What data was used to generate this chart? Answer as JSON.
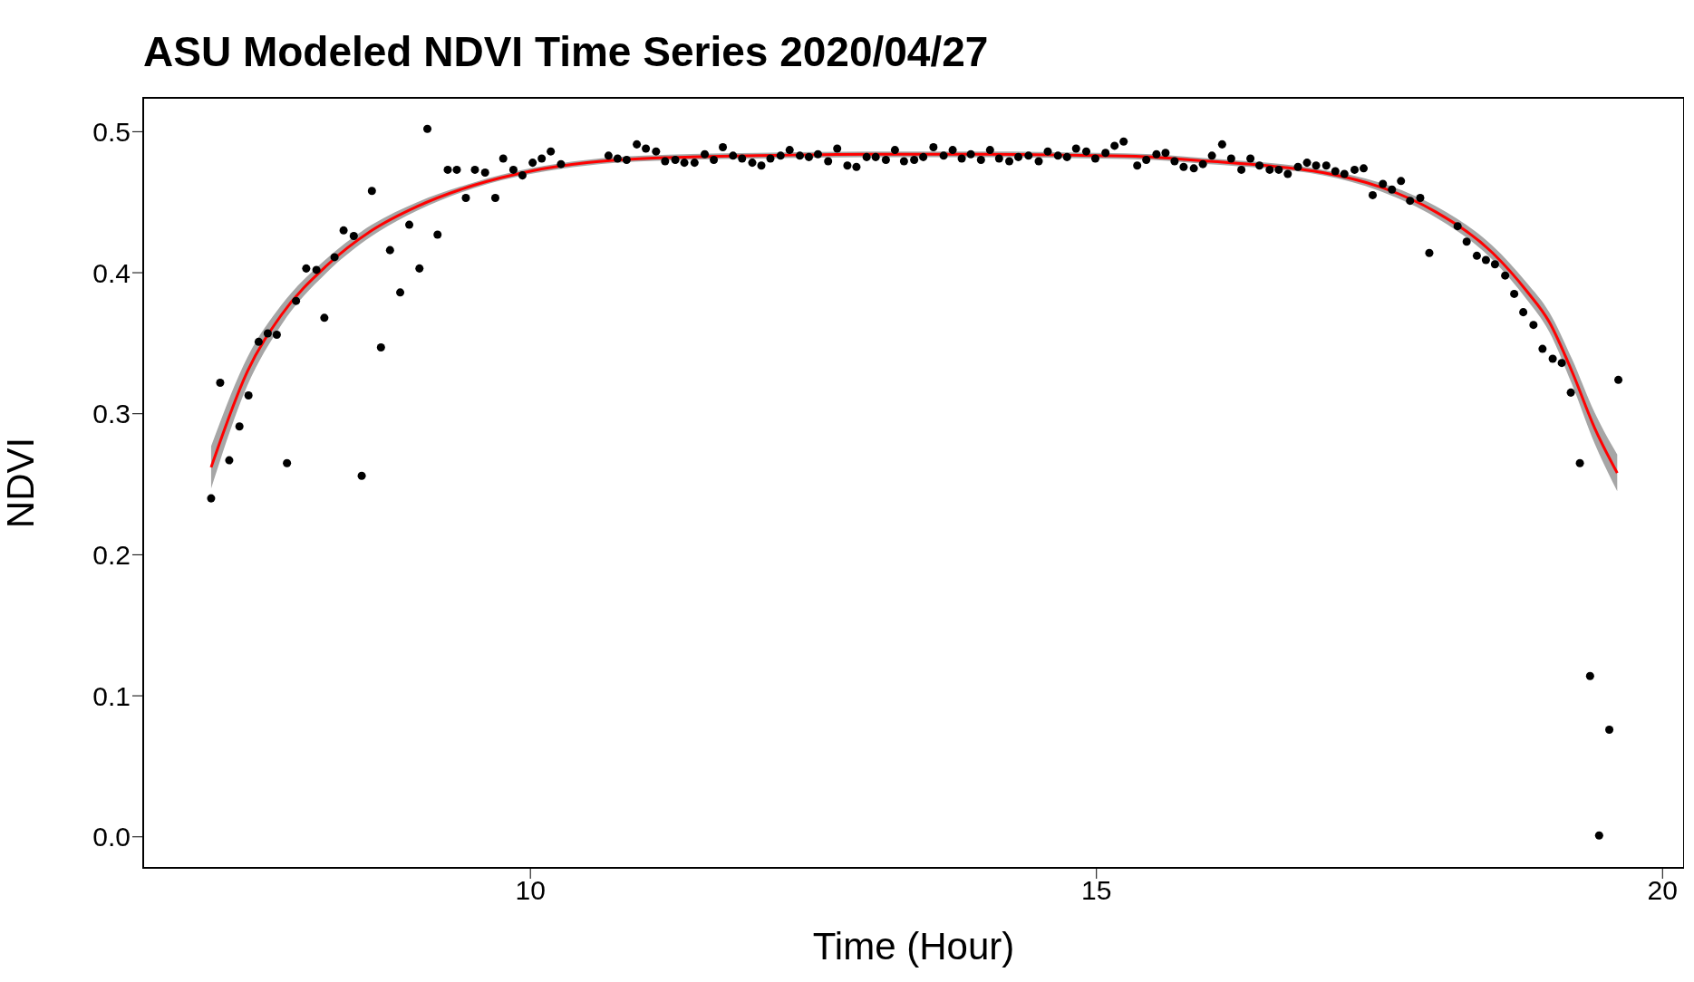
{
  "chart_data": {
    "type": "scatter",
    "title": "ASU Modeled NDVI Time Series 2020/04/27",
    "xlabel": "Time (Hour)",
    "ylabel": "NDVI",
    "xlim": [
      6.58,
      20.19
    ],
    "ylim": [
      -0.022,
      0.524
    ],
    "xticks": [
      10,
      15,
      20
    ],
    "yticks": [
      {
        "value": 0,
        "label": "0.0"
      },
      0.1,
      0.2,
      0.3,
      0.4,
      0.5
    ],
    "series": [
      {
        "marker": "circle",
        "color": "#000000",
        "x": [
          7.18,
          7.26,
          7.34,
          7.43,
          7.51,
          7.6,
          7.68,
          7.76,
          7.85,
          7.93,
          8.02,
          8.11,
          8.18,
          8.27,
          8.35,
          8.44,
          8.51,
          8.6,
          8.68,
          8.76,
          8.85,
          8.93,
          9.02,
          9.09,
          9.18,
          9.27,
          9.35,
          9.43,
          9.51,
          9.6,
          9.69,
          9.76,
          9.85,
          9.93,
          10.02,
          10.1,
          10.18,
          10.27,
          10.69,
          10.77,
          10.85,
          10.94,
          11.02,
          11.11,
          11.19,
          11.28,
          11.36,
          11.45,
          11.54,
          11.62,
          11.7,
          11.79,
          11.87,
          11.96,
          12.04,
          12.12,
          12.21,
          12.29,
          12.38,
          12.46,
          12.54,
          12.63,
          12.71,
          12.8,
          12.88,
          12.97,
          13.05,
          13.14,
          13.22,
          13.3,
          13.39,
          13.47,
          13.56,
          13.65,
          13.73,
          13.81,
          13.89,
          13.98,
          14.06,
          14.14,
          14.23,
          14.31,
          14.4,
          14.49,
          14.57,
          14.66,
          14.74,
          14.82,
          14.91,
          14.99,
          15.08,
          15.16,
          15.24,
          15.36,
          15.44,
          15.53,
          15.61,
          15.69,
          15.77,
          15.86,
          15.94,
          16.02,
          16.11,
          16.19,
          16.28,
          16.36,
          16.44,
          16.53,
          16.61,
          16.69,
          16.78,
          16.86,
          16.94,
          17.03,
          17.11,
          17.19,
          17.28,
          17.36,
          17.44,
          17.53,
          17.61,
          17.69,
          17.77,
          17.86,
          17.94,
          18.19,
          18.27,
          18.36,
          18.44,
          18.52,
          18.61,
          18.69,
          18.77,
          18.86,
          18.94,
          19.03,
          19.11,
          19.19,
          19.27,
          19.36,
          19.44,
          19.53,
          19.61
        ],
        "values": [
          0.24,
          0.322,
          0.267,
          0.291,
          0.313,
          0.351,
          0.357,
          0.356,
          0.265,
          0.38,
          0.403,
          0.402,
          0.368,
          0.411,
          0.43,
          0.426,
          0.256,
          0.458,
          0.347,
          0.416,
          0.386,
          0.434,
          0.403,
          0.502,
          0.427,
          0.473,
          0.473,
          0.453,
          0.473,
          0.471,
          0.453,
          0.481,
          0.473,
          0.469,
          0.478,
          0.481,
          0.486,
          0.477,
          0.483,
          0.481,
          0.48,
          0.491,
          0.488,
          0.486,
          0.479,
          0.48,
          0.478,
          0.478,
          0.484,
          0.48,
          0.489,
          0.483,
          0.481,
          0.478,
          0.476,
          0.481,
          0.483,
          0.487,
          0.483,
          0.482,
          0.484,
          0.479,
          0.488,
          0.476,
          0.475,
          0.482,
          0.482,
          0.48,
          0.487,
          0.479,
          0.48,
          0.482,
          0.489,
          0.483,
          0.487,
          0.481,
          0.484,
          0.48,
          0.487,
          0.481,
          0.479,
          0.482,
          0.483,
          0.479,
          0.486,
          0.483,
          0.482,
          0.488,
          0.486,
          0.481,
          0.485,
          0.49,
          0.493,
          0.476,
          0.48,
          0.484,
          0.485,
          0.479,
          0.475,
          0.474,
          0.477,
          0.483,
          0.491,
          0.481,
          0.473,
          0.481,
          0.476,
          0.473,
          0.473,
          0.47,
          0.475,
          0.478,
          0.476,
          0.476,
          0.472,
          0.47,
          0.473,
          0.474,
          0.455,
          0.463,
          0.459,
          0.465,
          0.451,
          0.453,
          0.414,
          0.433,
          0.422,
          0.412,
          0.409,
          0.406,
          0.398,
          0.385,
          0.372,
          0.363,
          0.346,
          0.339,
          0.336,
          0.315,
          0.265,
          0.114,
          0.001,
          0.076,
          0.324
        ]
      },
      {
        "type": "line",
        "color": "#ff0000",
        "x": [
          7.18,
          7.5,
          7.8,
          8.2,
          8.6,
          9.0,
          9.5,
          10,
          10.5,
          11,
          12,
          13,
          14,
          15,
          15.5,
          16,
          16.5,
          17,
          17.5,
          18,
          18.5,
          18.8,
          19.0,
          19.2,
          19.4,
          19.6
        ],
        "values": [
          0.262,
          0.33,
          0.37,
          0.405,
          0.43,
          0.447,
          0.462,
          0.472,
          0.478,
          0.481,
          0.483,
          0.484,
          0.484,
          0.483,
          0.482,
          0.479,
          0.476,
          0.471,
          0.461,
          0.443,
          0.414,
          0.387,
          0.365,
          0.33,
          0.29,
          0.258
        ],
        "lower": [
          0.247,
          0.32,
          0.363,
          0.4,
          0.426,
          0.444,
          0.46,
          0.47,
          0.476,
          0.479,
          0.481,
          0.482,
          0.482,
          0.481,
          0.48,
          0.477,
          0.474,
          0.469,
          0.458,
          0.439,
          0.409,
          0.381,
          0.358,
          0.321,
          0.279,
          0.245
        ],
        "upper": [
          0.277,
          0.34,
          0.377,
          0.41,
          0.434,
          0.45,
          0.464,
          0.474,
          0.48,
          0.483,
          0.485,
          0.486,
          0.486,
          0.485,
          0.484,
          0.481,
          0.478,
          0.473,
          0.464,
          0.447,
          0.419,
          0.393,
          0.372,
          0.339,
          0.301,
          0.271
        ]
      }
    ]
  }
}
